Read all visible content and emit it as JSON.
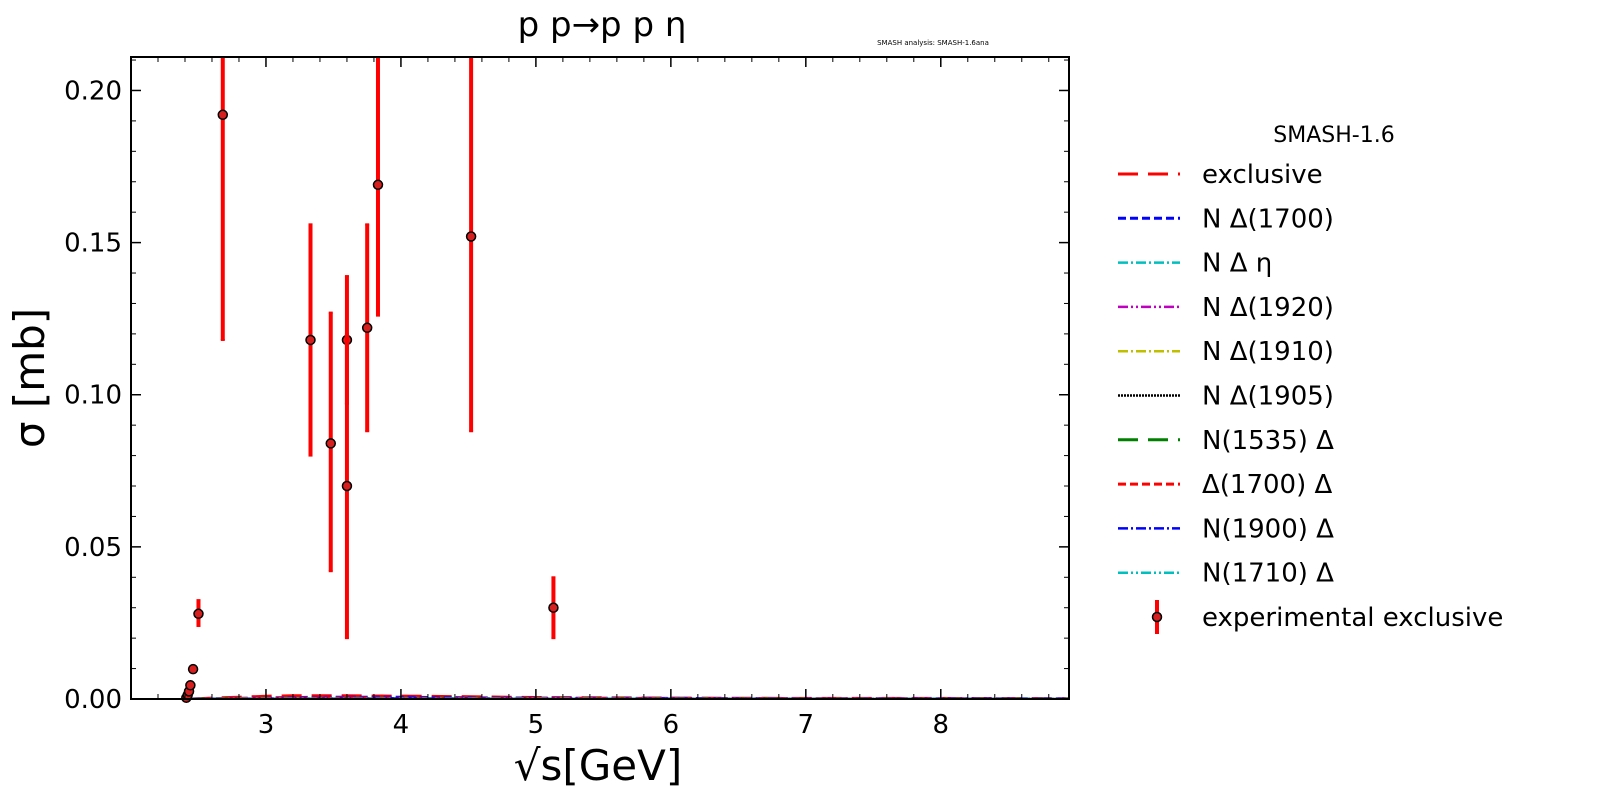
{
  "chart_data": {
    "type": "scatter",
    "title": "p p→p p η",
    "watermark": "SMASH analysis: SMASH-1.6ana",
    "xlabel": "√s[GeV]",
    "ylabel": "σ [mb]",
    "xlim": [
      2.0,
      8.95
    ],
    "ylim": [
      0.0,
      0.211
    ],
    "x_ticks": [
      3,
      4,
      5,
      6,
      7,
      8
    ],
    "y_ticks": [
      0.0,
      0.05,
      0.1,
      0.15,
      0.2
    ],
    "x_tick_labels": [
      "3",
      "4",
      "5",
      "6",
      "7",
      "8"
    ],
    "y_tick_labels": [
      "0.00",
      "0.05",
      "0.10",
      "0.15",
      "0.20"
    ],
    "grid": false,
    "legend": {
      "placement": "outside-right",
      "title": "SMASH-1.6",
      "entries": [
        {
          "label": "exclusive",
          "color": "#ff0000",
          "dash": "20,10",
          "width": 3
        },
        {
          "label": "N Δ(1700)",
          "color": "#0000ff",
          "dash": "8,4",
          "width": 3
        },
        {
          "label": "N Δ η",
          "color": "#00bfbf",
          "dash": "10,3,2,3",
          "width": 2.5
        },
        {
          "label": "N Δ(1920)",
          "color": "#bf00bf",
          "dash": "10,3,2,3,2,3",
          "width": 2.5
        },
        {
          "label": "N Δ(1910)",
          "color": "#bfbf00",
          "dash": "10,3,2,3",
          "width": 2.5
        },
        {
          "label": "N Δ(1905)",
          "color": "#000000",
          "dash": "2,1",
          "width": 2.5
        },
        {
          "label": "N(1535) Δ",
          "color": "#008000",
          "dash": "20,10",
          "width": 3
        },
        {
          "label": "Δ(1700) Δ",
          "color": "#ff0000",
          "dash": "8,4",
          "width": 3
        },
        {
          "label": "N(1900) Δ",
          "color": "#0000ff",
          "dash": "10,3,2,3",
          "width": 2.5
        },
        {
          "label": "N(1710) Δ",
          "color": "#00bfbf",
          "dash": "10,3,2,3,2,3",
          "width": 2.5
        },
        {
          "label": "experimental exclusive",
          "color": "#ff0000",
          "marker": "errorbar"
        }
      ]
    },
    "experimental": {
      "name": "experimental exclusive",
      "color": "#ff0000",
      "points": [
        {
          "x": 2.41,
          "y": 0.0004,
          "ylo": 0.0004,
          "yhi": 0.0004
        },
        {
          "x": 2.42,
          "y": 0.0013,
          "ylo": 0.0013,
          "yhi": 0.0013
        },
        {
          "x": 2.43,
          "y": 0.0025,
          "ylo": 0.0025,
          "yhi": 0.0025
        },
        {
          "x": 2.44,
          "y": 0.0045,
          "ylo": 0.0045,
          "yhi": 0.0045
        },
        {
          "x": 2.46,
          "y": 0.0098,
          "ylo": 0.0098,
          "yhi": 0.0098
        },
        {
          "x": 2.5,
          "y": 0.028,
          "ylo": 0.024,
          "yhi": 0.0325
        },
        {
          "x": 2.68,
          "y": 0.192,
          "ylo": 0.118,
          "yhi": 0.211
        },
        {
          "x": 3.33,
          "y": 0.118,
          "ylo": 0.08,
          "yhi": 0.156
        },
        {
          "x": 3.48,
          "y": 0.084,
          "ylo": 0.042,
          "yhi": 0.127
        },
        {
          "x": 3.6,
          "y": 0.118,
          "ylo": 0.097,
          "yhi": 0.139
        },
        {
          "x": 3.6,
          "y": 0.07,
          "ylo": 0.02,
          "yhi": 0.12
        },
        {
          "x": 3.75,
          "y": 0.122,
          "ylo": 0.088,
          "yhi": 0.156
        },
        {
          "x": 3.83,
          "y": 0.169,
          "ylo": 0.126,
          "yhi": 0.211
        },
        {
          "x": 4.52,
          "y": 0.152,
          "ylo": 0.088,
          "yhi": 0.211
        },
        {
          "x": 5.13,
          "y": 0.03,
          "ylo": 0.02,
          "yhi": 0.04
        }
      ]
    },
    "model_series": [
      {
        "name": "exclusive",
        "color": "#ff0000",
        "x": [
          2.45,
          2.6,
          2.8,
          3.0,
          3.2,
          3.5,
          3.8,
          4.2,
          4.6,
          5.0,
          6.0,
          7.0,
          8.0,
          8.95
        ],
        "y": [
          0.0,
          0.0003,
          0.0006,
          0.0009,
          0.0011,
          0.0011,
          0.001,
          0.0009,
          0.0007,
          0.0005,
          0.0003,
          0.0002,
          0.0002,
          0.0001
        ]
      },
      {
        "name": "N Δ(1700)",
        "color": "#0000ff",
        "x": [
          2.45,
          2.8,
          3.2,
          3.6,
          4.0,
          4.5,
          5.0,
          6.0,
          7.0,
          8.0,
          8.95
        ],
        "y": [
          0.0,
          0.0002,
          0.0005,
          0.0006,
          0.0006,
          0.0004,
          0.0003,
          0.0002,
          0.0001,
          0.0001,
          0.0001
        ]
      },
      {
        "name": "N Δ η",
        "color": "#00bfbf",
        "x": [
          2.45,
          3.0,
          4.0,
          5.0,
          6.0,
          7.0,
          8.0,
          8.95
        ],
        "y": [
          0.0,
          0.0001,
          0.0002,
          0.0001,
          0.0001,
          0.0001,
          0.0001,
          0.0001
        ]
      },
      {
        "name": "N Δ(1920)",
        "color": "#bf00bf",
        "x": [
          2.45,
          3.0,
          4.0,
          5.0,
          6.0,
          7.0,
          8.0,
          8.95
        ],
        "y": [
          0.0,
          0.0001,
          0.0002,
          0.0001,
          0.0001,
          0.0001,
          0.0,
          0.0
        ]
      },
      {
        "name": "N Δ(1910)",
        "color": "#bfbf00",
        "x": [
          2.45,
          3.0,
          4.0,
          5.0,
          6.0,
          7.0,
          8.0,
          8.95
        ],
        "y": [
          0.0,
          0.0001,
          0.0001,
          0.0001,
          0.0001,
          0.0001,
          0.0,
          0.0
        ]
      },
      {
        "name": "N Δ(1905)",
        "color": "#000000",
        "x": [
          2.45,
          3.0,
          4.0,
          5.0,
          6.0,
          7.0,
          8.0,
          8.95
        ],
        "y": [
          0.0,
          0.0,
          0.0001,
          0.0,
          0.0,
          0.0,
          0.0,
          0.0
        ]
      },
      {
        "name": "N(1535) Δ",
        "color": "#008000",
        "x": [
          2.45,
          3.0,
          4.0,
          5.0,
          6.0,
          7.0,
          8.0,
          8.95
        ],
        "y": [
          0.0,
          0.0001,
          0.0001,
          0.0001,
          0.0001,
          0.0,
          0.0,
          0.0
        ]
      },
      {
        "name": "Δ(1700) Δ",
        "color": "#ff0000",
        "x": [
          2.45,
          3.0,
          3.5,
          4.0,
          5.0,
          6.0,
          7.0,
          8.0,
          8.95
        ],
        "y": [
          0.0,
          0.0003,
          0.0004,
          0.0003,
          0.0002,
          0.0001,
          0.0001,
          0.0,
          0.0
        ]
      },
      {
        "name": "N(1900) Δ",
        "color": "#0000ff",
        "x": [
          2.45,
          3.0,
          4.0,
          5.0,
          6.0,
          7.0,
          8.0,
          8.95
        ],
        "y": [
          0.0,
          0.0001,
          0.0002,
          0.0001,
          0.0001,
          0.0,
          0.0,
          0.0
        ]
      },
      {
        "name": "N(1710) Δ",
        "color": "#00bfbf",
        "x": [
          2.45,
          3.0,
          4.0,
          5.0,
          6.0,
          7.0,
          8.0,
          8.95
        ],
        "y": [
          0.0,
          0.0001,
          0.0001,
          0.0001,
          0.0,
          0.0,
          0.0,
          0.0
        ]
      }
    ]
  }
}
